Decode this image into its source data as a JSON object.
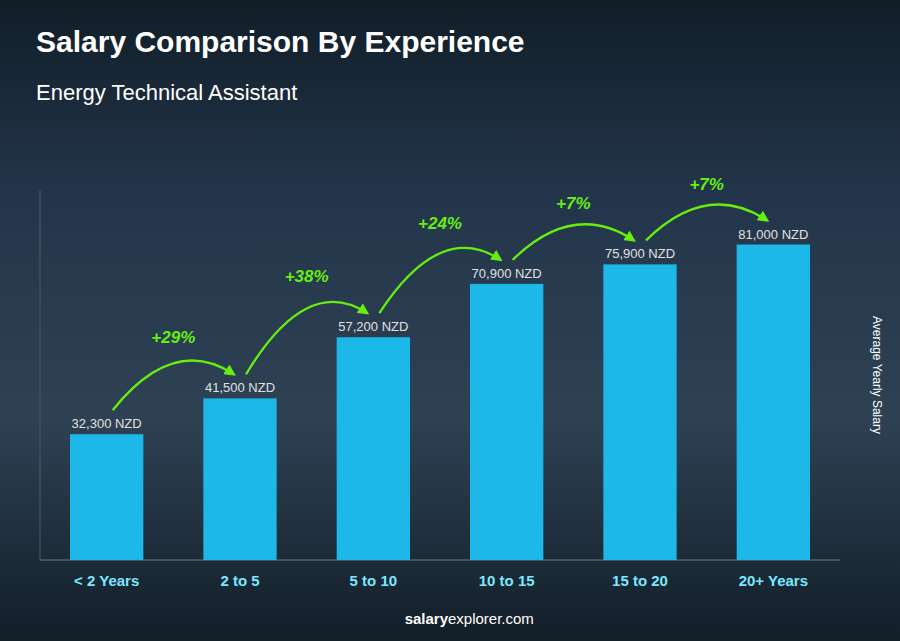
{
  "chart_data": {
    "type": "bar",
    "title": "Salary Comparison By Experience",
    "subtitle": "Energy Technical Assistant",
    "ylabel": "Average Yearly Salary",
    "categories": [
      "< 2 Years",
      "2 to 5",
      "5 to 10",
      "10 to 15",
      "15 to 20",
      "20+ Years"
    ],
    "values": [
      32300,
      41500,
      57200,
      70900,
      75900,
      81000
    ],
    "value_labels": [
      "32,300 NZD",
      "41,500 NZD",
      "57,200 NZD",
      "70,900 NZD",
      "75,900 NZD",
      "81,000 NZD"
    ],
    "data_labels": true,
    "annotations": [
      "+29%",
      "+38%",
      "+24%",
      "+7%",
      "+7%"
    ],
    "color": "#1bb8e8",
    "ylim": [
      0,
      95000
    ],
    "tick_labels": "x",
    "grid": false,
    "footer": [
      "salary",
      "explorer.com"
    ]
  }
}
